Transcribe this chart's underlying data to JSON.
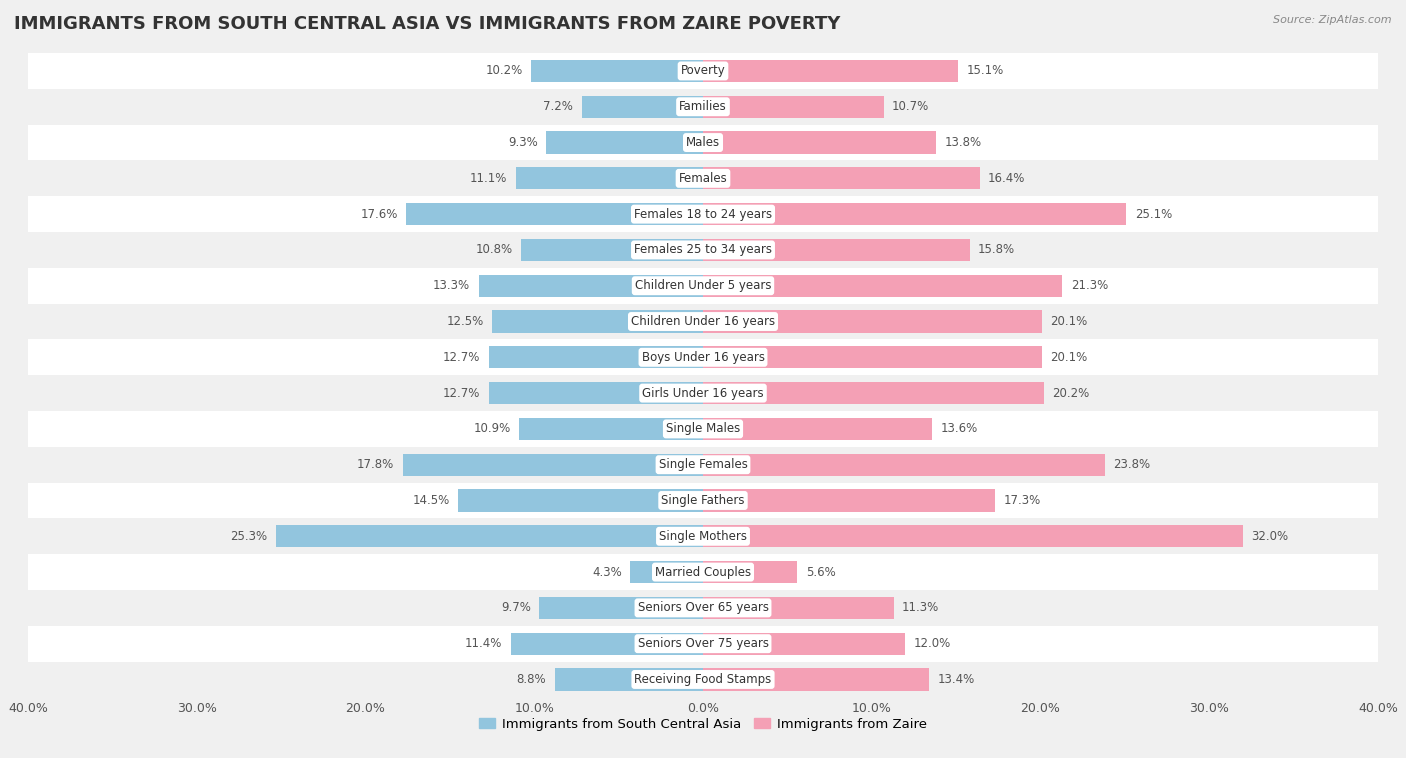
{
  "title": "IMMIGRANTS FROM SOUTH CENTRAL ASIA VS IMMIGRANTS FROM ZAIRE POVERTY",
  "source": "Source: ZipAtlas.com",
  "categories": [
    "Poverty",
    "Families",
    "Males",
    "Females",
    "Females 18 to 24 years",
    "Females 25 to 34 years",
    "Children Under 5 years",
    "Children Under 16 years",
    "Boys Under 16 years",
    "Girls Under 16 years",
    "Single Males",
    "Single Females",
    "Single Fathers",
    "Single Mothers",
    "Married Couples",
    "Seniors Over 65 years",
    "Seniors Over 75 years",
    "Receiving Food Stamps"
  ],
  "left_values": [
    10.2,
    7.2,
    9.3,
    11.1,
    17.6,
    10.8,
    13.3,
    12.5,
    12.7,
    12.7,
    10.9,
    17.8,
    14.5,
    25.3,
    4.3,
    9.7,
    11.4,
    8.8
  ],
  "right_values": [
    15.1,
    10.7,
    13.8,
    16.4,
    25.1,
    15.8,
    21.3,
    20.1,
    20.1,
    20.2,
    13.6,
    23.8,
    17.3,
    32.0,
    5.6,
    11.3,
    12.0,
    13.4
  ],
  "left_color": "#92c5de",
  "right_color": "#f4a0b5",
  "background_color": "#f0f0f0",
  "row_alt_color": "#ffffff",
  "xlim": 40.0,
  "legend_left": "Immigrants from South Central Asia",
  "legend_right": "Immigrants from Zaire",
  "title_fontsize": 13,
  "label_fontsize": 8.5,
  "value_fontsize": 8.5
}
